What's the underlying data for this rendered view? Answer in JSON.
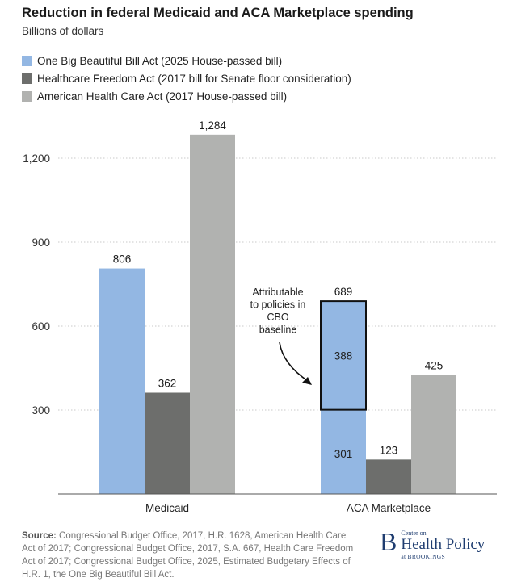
{
  "chart_data": {
    "type": "bar",
    "title": "Reduction in federal Medicaid and ACA Marketplace spending",
    "subtitle": "Billions of dollars",
    "categories": [
      "Medicaid",
      "ACA Marketplace"
    ],
    "ylim": [
      0,
      1350
    ],
    "yticks": [
      300,
      600,
      900,
      1200
    ],
    "ytick_labels": [
      "300",
      "600",
      "900",
      "1,200"
    ],
    "series": [
      {
        "name": "One Big Beautiful Bill Act (2025 House-passed bill)",
        "color": "#93b7e3",
        "values": [
          806,
          689
        ],
        "labels": [
          "806",
          "689"
        ]
      },
      {
        "name": "Healthcare Freedom Act (2017 bill for Senate floor consideration)",
        "color": "#6d6e6c",
        "values": [
          362,
          123
        ],
        "labels": [
          "362",
          "123"
        ]
      },
      {
        "name": "American Health Care Act (2017 House-passed bill)",
        "color": "#b1b2b0",
        "values": [
          1284,
          425
        ],
        "labels": [
          "1,284",
          "425"
        ]
      }
    ],
    "segments": {
      "base_value": 301,
      "base_label": "301",
      "box_value": 388,
      "box_label": "388"
    },
    "annotation": [
      "Attributable",
      "to policies in",
      "CBO",
      "baseline"
    ]
  },
  "source": {
    "label": "Source:",
    "text": "Congressional Budget Office, 2017, H.R. 1628, American Health Care Act of 2017; Congressional Budget Office, 2017, S.A. 667, Health Care Freedom Act of 2017; Congressional Budget Office, 2025, Estimated Budgetary Effects of H.R. 1, the One Big Beautiful Bill Act."
  },
  "logo": {
    "letter": "B",
    "top": "Center on",
    "main": "Health Policy",
    "bottom": "at BROOKINGS"
  }
}
